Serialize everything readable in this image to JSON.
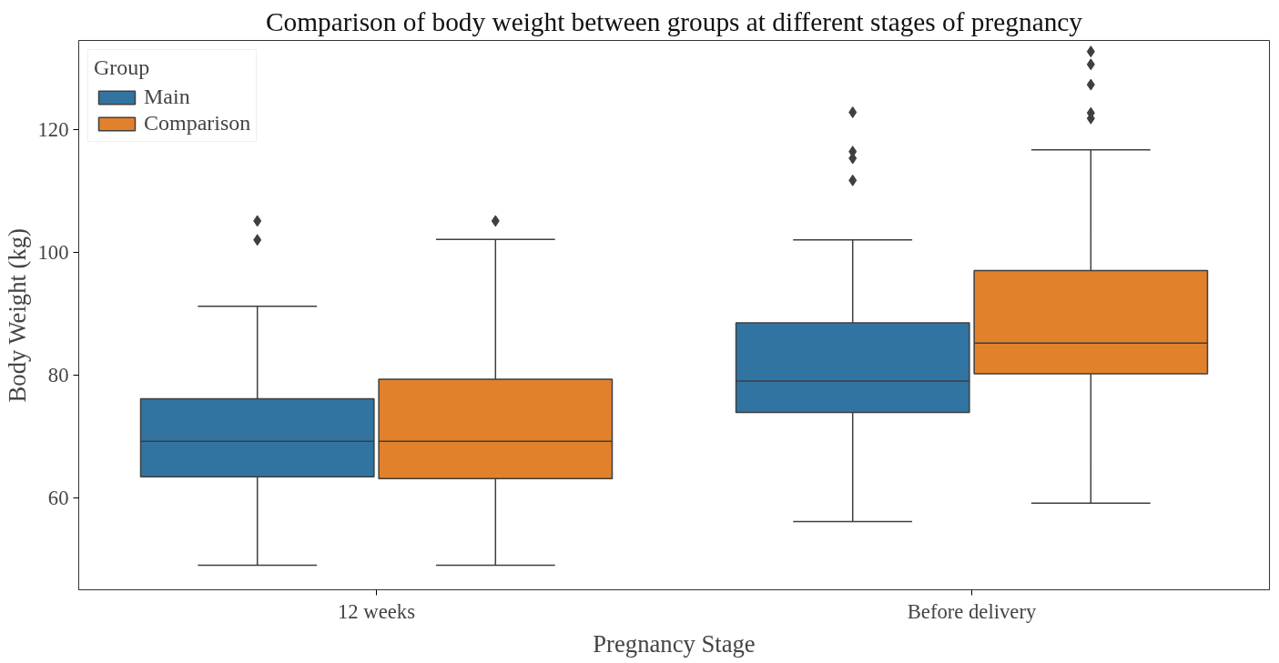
{
  "chart_data": {
    "type": "box",
    "title": "Comparison of body weight between groups at different stages of pregnancy",
    "xlabel": "Pregnancy Stage",
    "ylabel": "Body Weight (kg)",
    "legend_title": "Group",
    "legend": "top left",
    "grid": false,
    "categories": [
      "12 weeks",
      "Before delivery"
    ],
    "ylim": [
      45,
      134.5
    ],
    "yticks": [
      60,
      80,
      100,
      120
    ],
    "series": [
      {
        "name": "Main",
        "color": "#3274a1",
        "boxes": [
          {
            "low": 49,
            "q1": 63.4,
            "median": 69.2,
            "q3": 76.1,
            "high": 91.2,
            "outliers": [
              102,
              105.1
            ]
          },
          {
            "low": 56.1,
            "q1": 73.9,
            "median": 79,
            "q3": 88.5,
            "high": 102,
            "outliers": [
              111.7,
              115.3,
              116.4,
              122.8
            ]
          }
        ]
      },
      {
        "name": "Comparison",
        "color": "#e1812c",
        "boxes": [
          {
            "low": 49,
            "q1": 63.1,
            "median": 69.2,
            "q3": 79.3,
            "high": 102.1,
            "outliers": [
              105.1
            ]
          },
          {
            "low": 59.1,
            "q1": 80.2,
            "median": 85.2,
            "q3": 97,
            "high": 116.7,
            "outliers": [
              121.8,
              122.7,
              127.3,
              130.6,
              132.7
            ]
          }
        ]
      }
    ]
  }
}
